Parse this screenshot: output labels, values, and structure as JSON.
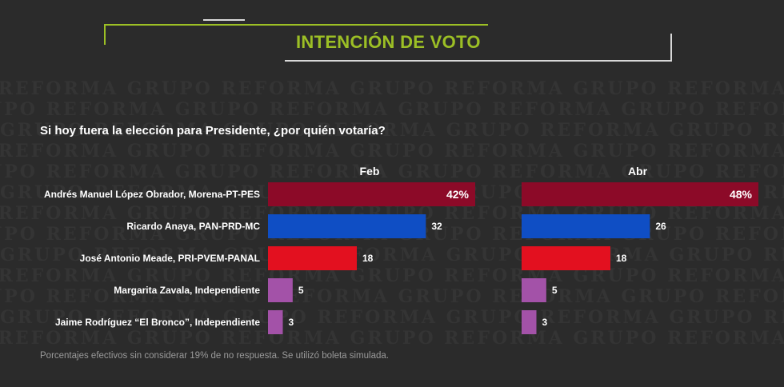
{
  "header": {
    "title": "INTENCIÓN DE VOTO"
  },
  "question": "Si hoy fuera la elección para Presidente, ¿por quién votaría?",
  "watermark_text": "GRUPO REFORMA",
  "footnote": "Porcentajes efectivos sin considerar 19% de no respuesta. Se utilizó boleta simulada.",
  "chart_data": {
    "type": "bar",
    "orientation": "horizontal",
    "categories": [
      "Andrés Manuel López Obrador, Morena-PT-PES",
      "Ricardo Anaya, PAN-PRD-MC",
      "José Antonio Meade, PRI-PVEM-PANAL",
      "Margarita Zavala, Independiente",
      "Jaime Rodríguez “El Bronco”, Independiente"
    ],
    "colors": [
      "#8c0a28",
      "#0f4ec4",
      "#e3101f",
      "#a352a8",
      "#a352a8"
    ],
    "xlim": [
      0,
      48
    ],
    "grid": false,
    "legend": "none",
    "series": [
      {
        "name": "Feb",
        "values": [
          42,
          32,
          18,
          5,
          3
        ],
        "labels": [
          "42%",
          "32",
          "18",
          "5",
          "3"
        ]
      },
      {
        "name": "Abr",
        "values": [
          48,
          26,
          18,
          5,
          3
        ],
        "labels": [
          "48%",
          "26",
          "18",
          "5",
          "3"
        ]
      }
    ]
  }
}
